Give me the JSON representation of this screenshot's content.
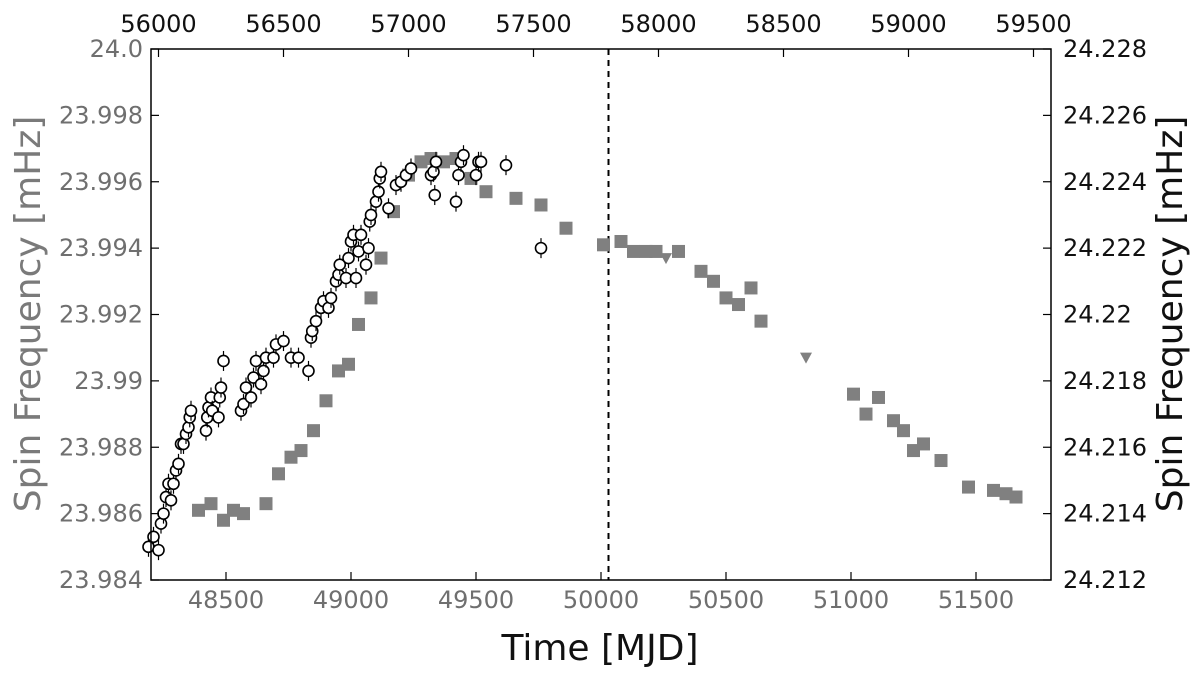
{
  "chart_data": {
    "type": "scatter",
    "title": "",
    "xlabel": "Time [MJD]",
    "ylabel_left": "Spin Frequency [mHz]",
    "ylabel_right": "Spin Frequency [mHz]",
    "xlim": [
      48200,
      51800
    ],
    "ylim_left": [
      23.984,
      24.0
    ],
    "ylim_right": [
      24.212,
      24.228
    ],
    "top_xlim": [
      55970,
      59570
    ],
    "x_ticks": [
      48500,
      49000,
      49500,
      50000,
      50500,
      51000,
      51500
    ],
    "x_tick_labels": [
      "48500",
      "49000",
      "49500",
      "50000",
      "50500",
      "51000",
      "51500"
    ],
    "top_ticks": [
      56000,
      56500,
      57000,
      57500,
      58000,
      58500,
      59000,
      59500
    ],
    "top_tick_labels": [
      "56000",
      "56500",
      "57000",
      "57500",
      "58000",
      "58500",
      "59000",
      "59500"
    ],
    "left_ticks": [
      23.984,
      23.986,
      23.988,
      23.99,
      23.992,
      23.994,
      23.996,
      23.998,
      24.0
    ],
    "left_tick_labels": [
      "23.984",
      "23.986",
      "23.988",
      "23.99",
      "23.992",
      "23.994",
      "23.996",
      "23.998",
      "24.0"
    ],
    "right_ticks": [
      24.212,
      24.214,
      24.216,
      24.218,
      24.22,
      24.222,
      24.224,
      24.226,
      24.228
    ],
    "right_tick_labels": [
      "24.212",
      "24.214",
      "24.216",
      "24.218",
      "24.22",
      "24.222",
      "24.224",
      "24.226",
      "24.228"
    ],
    "vline_x": 50030,
    "grid": false,
    "legend": "none",
    "colors": {
      "open_circles": "#000000",
      "gray_markers": "#808080",
      "left_axis_text": "#6f6f6f",
      "right_axis_text": "#111111"
    },
    "series": [
      {
        "axis": "left",
        "marker": "square",
        "points": [
          [
            48390,
            23.9861
          ],
          [
            48440,
            23.9863
          ],
          [
            48490,
            23.9858
          ],
          [
            48530,
            23.9861
          ],
          [
            48570,
            23.986
          ],
          [
            48660,
            23.9863
          ],
          [
            48710,
            23.9872
          ],
          [
            48760,
            23.9877
          ],
          [
            48800,
            23.9879
          ],
          [
            48850,
            23.9885
          ],
          [
            48900,
            23.9894
          ],
          [
            48950,
            23.9903
          ],
          [
            48990,
            23.9905
          ],
          [
            49030,
            23.9917
          ],
          [
            49080,
            23.9925
          ],
          [
            49120,
            23.9937
          ],
          [
            49170,
            23.9951
          ],
          [
            49230,
            23.9962
          ],
          [
            49280,
            23.9966
          ],
          [
            49320,
            23.9967
          ],
          [
            49370,
            23.9966
          ],
          [
            49420,
            23.9967
          ],
          [
            49480,
            23.9961
          ],
          [
            49540,
            23.9957
          ],
          [
            49660,
            23.9955
          ],
          [
            49760,
            23.9953
          ],
          [
            49860,
            23.9946
          ],
          [
            50010,
            23.9941
          ],
          [
            50080,
            23.9942
          ],
          [
            50130,
            23.9939
          ],
          [
            50180,
            23.9939
          ],
          [
            50220,
            23.9939
          ],
          [
            50310,
            23.9939
          ],
          [
            50400,
            23.9933
          ],
          [
            50450,
            23.993
          ],
          [
            50500,
            23.9925
          ],
          [
            50550,
            23.9923
          ],
          [
            50600,
            23.9928
          ],
          [
            50640,
            23.9918
          ],
          [
            51010,
            23.9896
          ],
          [
            51060,
            23.989
          ],
          [
            51110,
            23.9895
          ],
          [
            51170,
            23.9888
          ],
          [
            51210,
            23.9885
          ],
          [
            51250,
            23.9879
          ],
          [
            51290,
            23.9881
          ],
          [
            51360,
            23.9876
          ],
          [
            51470,
            23.9868
          ],
          [
            51570,
            23.9867
          ],
          [
            51620,
            23.9866
          ],
          [
            51660,
            23.9865
          ]
        ]
      },
      {
        "axis": "left",
        "marker": "triangle-down",
        "points": [
          [
            50260,
            23.9937
          ],
          [
            50820,
            23.9907
          ]
        ]
      },
      {
        "axis": "left",
        "marker": "open-circle",
        "points": [
          [
            48190,
            23.985
          ],
          [
            48210,
            23.9853
          ],
          [
            48230,
            23.9849
          ],
          [
            48240,
            23.9857
          ],
          [
            48250,
            23.986
          ],
          [
            48260,
            23.9865
          ],
          [
            48270,
            23.9869
          ],
          [
            48280,
            23.9864
          ],
          [
            48290,
            23.9869
          ],
          [
            48300,
            23.9873
          ],
          [
            48310,
            23.9875
          ],
          [
            48320,
            23.9881
          ],
          [
            48330,
            23.9881
          ],
          [
            48340,
            23.9884
          ],
          [
            48350,
            23.9886
          ],
          [
            48355,
            23.9889
          ],
          [
            48360,
            23.9891
          ],
          [
            48420,
            23.9885
          ],
          [
            48425,
            23.9889
          ],
          [
            48430,
            23.9892
          ],
          [
            48440,
            23.9895
          ],
          [
            48445,
            23.9891
          ],
          [
            48470,
            23.9889
          ],
          [
            48475,
            23.9895
          ],
          [
            48480,
            23.9898
          ],
          [
            48490,
            23.9906
          ],
          [
            48560,
            23.9891
          ],
          [
            48570,
            23.9893
          ],
          [
            48580,
            23.9898
          ],
          [
            48600,
            23.9895
          ],
          [
            48610,
            23.9901
          ],
          [
            48620,
            23.9906
          ],
          [
            48640,
            23.9899
          ],
          [
            48650,
            23.9903
          ],
          [
            48660,
            23.9907
          ],
          [
            48690,
            23.9907
          ],
          [
            48700,
            23.9911
          ],
          [
            48730,
            23.9912
          ],
          [
            48760,
            23.9907
          ],
          [
            48790,
            23.9907
          ],
          [
            48830,
            23.9903
          ],
          [
            48840,
            23.9913
          ],
          [
            48845,
            23.9915
          ],
          [
            48860,
            23.9918
          ],
          [
            48880,
            23.9922
          ],
          [
            48890,
            23.9924
          ],
          [
            48910,
            23.9922
          ],
          [
            48920,
            23.9925
          ],
          [
            48940,
            23.993
          ],
          [
            48950,
            23.9932
          ],
          [
            48955,
            23.9935
          ],
          [
            48980,
            23.9931
          ],
          [
            48990,
            23.9937
          ],
          [
            49000,
            23.9942
          ],
          [
            49010,
            23.9944
          ],
          [
            49020,
            23.9931
          ],
          [
            49030,
            23.9939
          ],
          [
            49040,
            23.9944
          ],
          [
            49060,
            23.9935
          ],
          [
            49070,
            23.994
          ],
          [
            49075,
            23.9948
          ],
          [
            49080,
            23.995
          ],
          [
            49100,
            23.9954
          ],
          [
            49110,
            23.9957
          ],
          [
            49115,
            23.9961
          ],
          [
            49120,
            23.9963
          ],
          [
            49150,
            23.9952
          ],
          [
            49180,
            23.9959
          ],
          [
            49200,
            23.996
          ],
          [
            49220,
            23.9962
          ],
          [
            49240,
            23.9964
          ],
          [
            49320,
            23.9962
          ],
          [
            49330,
            23.9963
          ],
          [
            49335,
            23.9956
          ],
          [
            49340,
            23.9966
          ],
          [
            49420,
            23.9954
          ],
          [
            49430,
            23.9962
          ],
          [
            49440,
            23.9966
          ],
          [
            49450,
            23.9968
          ],
          [
            49500,
            23.9962
          ],
          [
            49510,
            23.9966
          ],
          [
            49520,
            23.9966
          ],
          [
            49620,
            23.9965
          ],
          [
            49760,
            23.994
          ]
        ]
      }
    ]
  }
}
